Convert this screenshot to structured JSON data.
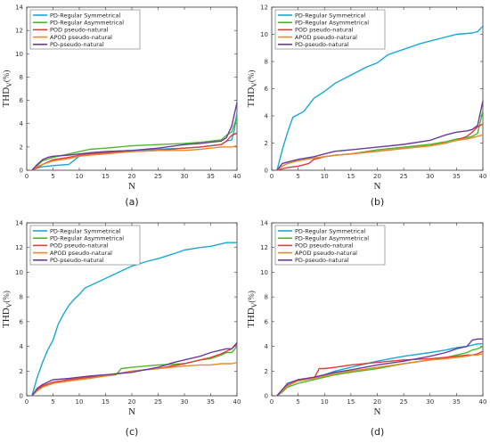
{
  "chart_data": [
    {
      "type": "line",
      "caption": "(a)",
      "xlabel": "N",
      "ylabel_main": "THD",
      "ylabel_sub": "V",
      "ylabel_unit": "(%)",
      "xlim": [
        0,
        40
      ],
      "ylim": [
        0,
        14
      ],
      "xticks": [
        0,
        5,
        10,
        15,
        20,
        25,
        30,
        35,
        40
      ],
      "yticks": [
        0,
        2,
        4,
        6,
        8,
        10,
        12,
        14
      ],
      "grid": false,
      "legend_position": "top-left",
      "series": [
        {
          "name": "PD-Regular Symmetrical",
          "color": "#1aa7d4",
          "x": [
            1,
            2,
            3,
            5,
            8,
            10,
            12,
            15,
            20,
            25,
            30,
            33,
            35,
            37,
            38,
            39,
            39.5,
            40
          ],
          "y": [
            0,
            0.2,
            0.3,
            0.4,
            0.5,
            1.2,
            1.5,
            1.6,
            1.7,
            1.8,
            1.9,
            2.0,
            2.1,
            2.2,
            2.5,
            2.6,
            3.5,
            5.0
          ]
        },
        {
          "name": "PD-Regular Asymmetrical",
          "color": "#4cb82e",
          "x": [
            1,
            2,
            3,
            5,
            8,
            10,
            12,
            15,
            20,
            25,
            30,
            33,
            35,
            37,
            38,
            39,
            40
          ],
          "y": [
            0,
            0.4,
            0.8,
            1.1,
            1.4,
            1.6,
            1.8,
            1.9,
            2.1,
            2.2,
            2.3,
            2.4,
            2.5,
            2.6,
            3.0,
            3.3,
            4.6
          ]
        },
        {
          "name": "POD pseudo-natural",
          "color": "#e33a3a",
          "x": [
            1,
            2,
            3,
            5,
            8,
            10,
            12,
            15,
            20,
            25,
            30,
            33,
            35,
            37,
            38,
            39,
            40
          ],
          "y": [
            0,
            0.2,
            0.5,
            0.9,
            1.1,
            1.3,
            1.4,
            1.5,
            1.6,
            1.7,
            1.9,
            2.0,
            2.1,
            2.2,
            2.5,
            3.0,
            3.2
          ]
        },
        {
          "name": "APOD pseudo-natural",
          "color": "#e8892b",
          "x": [
            1,
            2,
            3,
            5,
            8,
            10,
            12,
            15,
            20,
            25,
            30,
            33,
            35,
            37,
            38,
            39,
            40
          ],
          "y": [
            0,
            0.3,
            0.5,
            0.8,
            1.0,
            1.2,
            1.3,
            1.4,
            1.6,
            1.7,
            1.7,
            1.8,
            1.9,
            2.0,
            2.0,
            2.0,
            2.1
          ]
        },
        {
          "name": "PD-pseudo-natural",
          "color": "#6a3a9c",
          "x": [
            1,
            2,
            3,
            4,
            5,
            8,
            10,
            12,
            15,
            20,
            25,
            30,
            33,
            35,
            37,
            38,
            39,
            40
          ],
          "y": [
            0,
            0.5,
            0.9,
            1.1,
            1.2,
            1.3,
            1.4,
            1.5,
            1.6,
            1.7,
            1.9,
            2.2,
            2.3,
            2.4,
            2.5,
            2.8,
            3.8,
            5.8
          ]
        }
      ]
    },
    {
      "type": "line",
      "caption": "(b)",
      "xlabel": "N",
      "ylabel_main": "THD",
      "ylabel_sub": "V",
      "ylabel_unit": "(%)",
      "xlim": [
        0,
        40
      ],
      "ylim": [
        0,
        12
      ],
      "xticks": [
        0,
        5,
        10,
        15,
        20,
        25,
        30,
        35,
        40
      ],
      "yticks": [
        0,
        2,
        4,
        6,
        8,
        10,
        12
      ],
      "grid": false,
      "legend_position": "top-left",
      "series": [
        {
          "name": "PD-Regular Symmetrical",
          "color": "#1aa7d4",
          "x": [
            1,
            2,
            3,
            4,
            6,
            7,
            8,
            10,
            12,
            15,
            18,
            20,
            22,
            25,
            28,
            30,
            33,
            35,
            38,
            39,
            40
          ],
          "y": [
            0,
            1.5,
            2.8,
            3.9,
            4.3,
            4.8,
            5.3,
            5.8,
            6.4,
            7.0,
            7.6,
            7.9,
            8.5,
            8.9,
            9.3,
            9.5,
            9.8,
            10.0,
            10.1,
            10.2,
            10.6
          ]
        },
        {
          "name": "PD-Regular Asymmetrical",
          "color": "#4cb82e",
          "x": [
            1,
            2,
            3,
            5,
            8,
            10,
            12,
            15,
            20,
            25,
            30,
            33,
            35,
            37,
            38,
            39,
            40
          ],
          "y": [
            0,
            0.3,
            0.5,
            0.7,
            0.9,
            1.0,
            1.1,
            1.2,
            1.5,
            1.7,
            1.9,
            2.1,
            2.3,
            2.4,
            2.5,
            2.7,
            4.4
          ]
        },
        {
          "name": "POD pseudo-natural",
          "color": "#e33a3a",
          "x": [
            1,
            2,
            3,
            5,
            7,
            8,
            10,
            12,
            15,
            20,
            25,
            30,
            33,
            35,
            37,
            38,
            39,
            40
          ],
          "y": [
            0,
            0.1,
            0.2,
            0.3,
            0.5,
            0.8,
            1.0,
            1.1,
            1.2,
            1.4,
            1.6,
            1.8,
            2.0,
            2.2,
            2.5,
            2.8,
            3.2,
            3.4
          ]
        },
        {
          "name": "APOD pseudo-natural",
          "color": "#e8892b",
          "x": [
            1,
            2,
            3,
            5,
            8,
            10,
            12,
            15,
            20,
            25,
            30,
            33,
            35,
            37,
            38,
            39,
            40
          ],
          "y": [
            0,
            0.3,
            0.5,
            0.7,
            0.9,
            1.0,
            1.1,
            1.2,
            1.4,
            1.6,
            1.8,
            2.0,
            2.2,
            2.3,
            2.4,
            2.5,
            2.6
          ]
        },
        {
          "name": "PD-pseudo-natural",
          "color": "#6a3a9c",
          "x": [
            1,
            2,
            3,
            5,
            8,
            10,
            12,
            15,
            20,
            25,
            30,
            33,
            35,
            37,
            38,
            39,
            40
          ],
          "y": [
            0,
            0.5,
            0.6,
            0.8,
            1.0,
            1.2,
            1.4,
            1.5,
            1.7,
            1.9,
            2.2,
            2.6,
            2.8,
            2.9,
            3.0,
            3.3,
            5.1
          ]
        }
      ]
    },
    {
      "type": "line",
      "caption": "(c)",
      "xlabel": "N",
      "ylabel_main": "THD",
      "ylabel_sub": "V",
      "ylabel_unit": "(%)",
      "xlim": [
        0,
        40
      ],
      "ylim": [
        0,
        14
      ],
      "xticks": [
        0,
        5,
        10,
        15,
        20,
        25,
        30,
        35,
        40
      ],
      "yticks": [
        0,
        2,
        4,
        6,
        8,
        10,
        12,
        14
      ],
      "grid": false,
      "legend_position": "top-left",
      "series": [
        {
          "name": "PD-Regular Symmetrical",
          "color": "#1aa7d4",
          "x": [
            1,
            2,
            3,
            4,
            5,
            6,
            7,
            8,
            9,
            10,
            11,
            13,
            15,
            18,
            20,
            23,
            25,
            28,
            30,
            33,
            35,
            38,
            40
          ],
          "y": [
            0,
            1.5,
            2.7,
            3.7,
            4.5,
            5.8,
            6.6,
            7.3,
            7.8,
            8.2,
            8.7,
            9.1,
            9.5,
            10.1,
            10.5,
            10.9,
            11.1,
            11.5,
            11.8,
            12.0,
            12.1,
            12.4,
            12.4
          ]
        },
        {
          "name": "PD-Regular Asymmetrical",
          "color": "#4cb82e",
          "x": [
            1,
            2,
            3,
            5,
            8,
            10,
            12,
            15,
            17,
            18,
            20,
            25,
            30,
            33,
            35,
            37,
            38,
            39,
            40
          ],
          "y": [
            0,
            0.4,
            0.7,
            1.0,
            1.2,
            1.4,
            1.5,
            1.6,
            1.7,
            2.2,
            2.3,
            2.5,
            2.6,
            2.9,
            3.0,
            3.3,
            3.5,
            3.5,
            4.0
          ]
        },
        {
          "name": "POD pseudo-natural",
          "color": "#e33a3a",
          "x": [
            1,
            2,
            3,
            5,
            8,
            10,
            12,
            15,
            20,
            25,
            30,
            33,
            35,
            37,
            38,
            39,
            40
          ],
          "y": [
            0,
            0.5,
            0.8,
            1.1,
            1.3,
            1.4,
            1.5,
            1.6,
            2.0,
            2.2,
            2.6,
            2.9,
            3.1,
            3.4,
            3.6,
            3.8,
            4.2
          ]
        },
        {
          "name": "APOD pseudo-natural",
          "color": "#e8892b",
          "x": [
            1,
            2,
            3,
            5,
            8,
            10,
            12,
            15,
            20,
            25,
            30,
            33,
            35,
            37,
            38,
            39,
            40
          ],
          "y": [
            0,
            0.4,
            0.7,
            1.0,
            1.2,
            1.3,
            1.4,
            1.6,
            2.0,
            2.2,
            2.4,
            2.5,
            2.5,
            2.6,
            2.6,
            2.6,
            2.7
          ]
        },
        {
          "name": "PD-pseudo-natural",
          "color": "#6a3a9c",
          "x": [
            1,
            2,
            3,
            5,
            8,
            10,
            12,
            15,
            20,
            25,
            28,
            30,
            33,
            35,
            37,
            38,
            39,
            40
          ],
          "y": [
            0,
            0.6,
            0.9,
            1.3,
            1.4,
            1.5,
            1.6,
            1.7,
            1.9,
            2.3,
            2.7,
            2.9,
            3.2,
            3.5,
            3.7,
            3.8,
            3.8,
            4.3
          ]
        }
      ]
    },
    {
      "type": "line",
      "caption": "(d)",
      "xlabel": "N",
      "ylabel_main": "THD",
      "ylabel_sub": "V",
      "ylabel_unit": "(%)",
      "xlim": [
        0,
        40
      ],
      "ylim": [
        0,
        14
      ],
      "xticks": [
        0,
        5,
        10,
        15,
        20,
        25,
        30,
        35,
        40
      ],
      "yticks": [
        0,
        2,
        4,
        6,
        8,
        10,
        12,
        14
      ],
      "grid": false,
      "legend_position": "top-left",
      "series": [
        {
          "name": "PD-Regular Symmetrical",
          "color": "#1aa7d4",
          "x": [
            1,
            2,
            3,
            5,
            8,
            10,
            12,
            15,
            20,
            25,
            30,
            33,
            35,
            37,
            38,
            39,
            40
          ],
          "y": [
            0,
            0.5,
            0.9,
            1.2,
            1.4,
            1.7,
            2.0,
            2.3,
            2.8,
            3.2,
            3.5,
            3.7,
            3.9,
            4.0,
            4.1,
            4.2,
            4.2
          ]
        },
        {
          "name": "PD-Regular Asymmetrical",
          "color": "#4cb82e",
          "x": [
            1,
            2,
            3,
            5,
            8,
            10,
            12,
            15,
            20,
            25,
            30,
            33,
            35,
            37,
            38,
            39,
            40
          ],
          "y": [
            0,
            0.3,
            0.7,
            1.0,
            1.3,
            1.5,
            1.7,
            1.9,
            2.2,
            2.6,
            2.9,
            3.1,
            3.3,
            3.5,
            3.7,
            3.8,
            4.0
          ]
        },
        {
          "name": "POD pseudo-natural",
          "color": "#e33a3a",
          "x": [
            1,
            2,
            3,
            5,
            8,
            9,
            10,
            12,
            15,
            20,
            25,
            30,
            33,
            35,
            37,
            38,
            39,
            40
          ],
          "y": [
            0,
            0.4,
            0.8,
            1.3,
            1.4,
            2.2,
            2.2,
            2.3,
            2.5,
            2.7,
            2.9,
            3.0,
            3.1,
            3.2,
            3.3,
            3.3,
            3.4,
            3.6
          ]
        },
        {
          "name": "APOD pseudo-natural",
          "color": "#e8892b",
          "x": [
            1,
            2,
            3,
            5,
            8,
            10,
            12,
            15,
            20,
            25,
            30,
            33,
            35,
            37,
            38,
            39,
            40
          ],
          "y": [
            0,
            0.4,
            0.8,
            1.2,
            1.4,
            1.6,
            1.8,
            2.0,
            2.3,
            2.6,
            2.9,
            3.0,
            3.1,
            3.2,
            3.3,
            3.3,
            3.4
          ]
        },
        {
          "name": "PD-pseudo-natural",
          "color": "#6a3a9c",
          "x": [
            1,
            2,
            3,
            5,
            8,
            10,
            12,
            15,
            20,
            25,
            30,
            33,
            35,
            37,
            38,
            39,
            40
          ],
          "y": [
            0,
            0.5,
            1.0,
            1.3,
            1.5,
            1.7,
            1.9,
            2.1,
            2.5,
            2.8,
            3.2,
            3.5,
            3.8,
            4.0,
            4.5,
            4.6,
            4.6
          ]
        }
      ]
    }
  ]
}
